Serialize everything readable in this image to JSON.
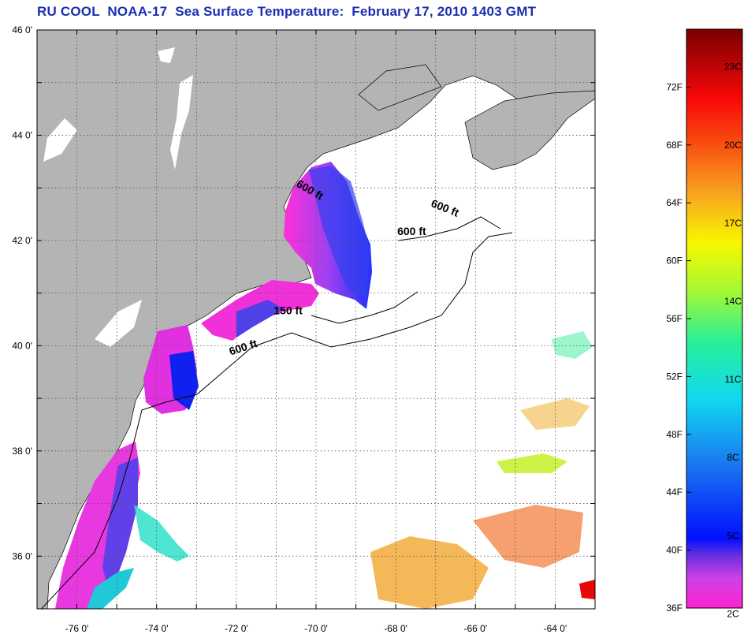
{
  "title": "RU COOL  NOAA-17  Sea Surface Temperature:  February 17, 2010 1403 GMT",
  "map": {
    "lon_range": [
      -77,
      -63
    ],
    "lat_range": [
      35,
      46
    ],
    "lat_ticks": [
      {
        "value": 46,
        "label": "46 0'"
      },
      {
        "value": 44,
        "label": "44 0'"
      },
      {
        "value": 42,
        "label": "42 0'"
      },
      {
        "value": 40,
        "label": "40 0'"
      },
      {
        "value": 38,
        "label": "38 0'"
      },
      {
        "value": 36,
        "label": "36 0'"
      }
    ],
    "lon_ticks": [
      {
        "value": -76,
        "label": "-76 0'"
      },
      {
        "value": -74,
        "label": "-74 0'"
      },
      {
        "value": -72,
        "label": "-72 0'"
      },
      {
        "value": -70,
        "label": "-70 0'"
      },
      {
        "value": -68,
        "label": "-68 0'"
      },
      {
        "value": -66,
        "label": "-66 0'"
      },
      {
        "value": -64,
        "label": "-64 0'"
      }
    ],
    "depth_labels": [
      {
        "text": "600 ft",
        "lon": -70.2,
        "lat": 42.9,
        "rot": 30
      },
      {
        "text": "600 ft",
        "lon": -66.8,
        "lat": 42.55,
        "rot": 22
      },
      {
        "text": "600 ft",
        "lon": -67.6,
        "lat": 42.1,
        "rot": 0
      },
      {
        "text": "150 ft",
        "lon": -70.7,
        "lat": 40.6,
        "rot": 0
      },
      {
        "text": "600 ft",
        "lon": -71.8,
        "lat": 39.9,
        "rot": -18
      }
    ],
    "colors": {
      "land": "#b4b4b4",
      "ocean": "#ffffff",
      "grid": "#555555"
    }
  },
  "colorbar": {
    "fahrenheit": [
      "36F",
      "40F",
      "44F",
      "48F",
      "52F",
      "56F",
      "60F",
      "64F",
      "68F",
      "72F"
    ],
    "celsius": [
      "2C",
      "5C",
      "8C",
      "11C",
      "14C",
      "17C",
      "20C",
      "23C"
    ]
  }
}
